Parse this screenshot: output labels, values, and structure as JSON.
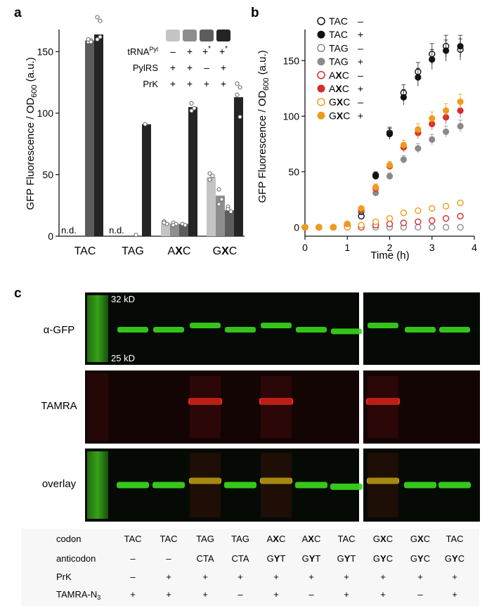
{
  "panels": {
    "a": "a",
    "b": "b",
    "c": "c"
  },
  "chart_data": [
    {
      "type": "bar",
      "panel": "a",
      "ylabel_main": "GFP Fluorescence / OD",
      "ylabel_sub": "600",
      "ylabel_tail": " (a.u.)",
      "yticks": [
        0,
        50,
        100,
        150
      ],
      "ylim": [
        0,
        168
      ],
      "groups": [
        {
          "pre": "TAC",
          "bold": "",
          "post": ""
        },
        {
          "pre": "TAG",
          "bold": "",
          "post": ""
        },
        {
          "pre": "A",
          "bold": "X",
          "post": "C"
        },
        {
          "pre": "G",
          "bold": "X",
          "post": "C"
        }
      ],
      "nd_label": "n.d.",
      "conditions": [
        {
          "color": "#c4c4c4",
          "trna": "–",
          "trna_star": "",
          "pylrs": "+",
          "prk": "+"
        },
        {
          "color": "#8e8e8e",
          "trna": "+",
          "trna_star": "",
          "pylrs": "+",
          "prk": "+"
        },
        {
          "color": "#5c5c5c",
          "trna": "+",
          "trna_star": "*",
          "pylrs": "–",
          "prk": "+"
        },
        {
          "color": "#242424",
          "trna": "+",
          "trna_star": "*",
          "pylrs": "+",
          "prk": "+"
        }
      ],
      "row_labels": {
        "trna": "tRNA",
        "trna_sup": "Pyl",
        "pylrs": "PylRS",
        "prk": "PrK"
      },
      "bars": [
        {
          "group": 0,
          "cond": 0,
          "value": null
        },
        {
          "group": 0,
          "cond": 2,
          "value": 159,
          "points": [
            158,
            159,
            160,
            158
          ]
        },
        {
          "group": 0,
          "cond": 3,
          "value": 164,
          "points": [
            178,
            175,
            160,
            162
          ]
        },
        {
          "group": 1,
          "cond": 0,
          "value": null
        },
        {
          "group": 1,
          "cond": 2,
          "value": 0.5,
          "points": [
            1
          ]
        },
        {
          "group": 1,
          "cond": 3,
          "value": 91,
          "points": [
            91
          ]
        },
        {
          "group": 2,
          "cond": 0,
          "value": 11,
          "points": [
            12,
            10,
            11
          ]
        },
        {
          "group": 2,
          "cond": 1,
          "value": 10,
          "points": [
            11,
            10,
            9
          ]
        },
        {
          "group": 2,
          "cond": 2,
          "value": 10,
          "points": [
            10,
            9
          ]
        },
        {
          "group": 2,
          "cond": 3,
          "value": 105,
          "points": [
            108,
            104,
            102
          ]
        },
        {
          "group": 3,
          "cond": 0,
          "value": 48,
          "points": [
            51,
            49,
            46
          ]
        },
        {
          "group": 3,
          "cond": 1,
          "value": 33,
          "points": [
            38,
            30,
            26
          ]
        },
        {
          "group": 3,
          "cond": 2,
          "value": 21,
          "points": [
            24,
            20,
            22
          ]
        },
        {
          "group": 3,
          "cond": 3,
          "value": 113,
          "points": [
            124,
            121,
            115,
            97
          ]
        }
      ]
    },
    {
      "type": "scatter",
      "panel": "b",
      "xlabel": "Time (h)",
      "ylabel_main": "GFP Fluorescence / OD",
      "ylabel_sub": "600",
      "ylabel_tail": " (a.u.)",
      "xlim": [
        0,
        4
      ],
      "ylim": [
        -8,
        178
      ],
      "xticks": [
        0,
        1,
        2,
        3,
        4
      ],
      "yticks": [
        0,
        50,
        100,
        150
      ],
      "x": [
        0,
        0.33,
        0.67,
        1.0,
        1.33,
        1.67,
        2.0,
        2.33,
        2.67,
        3.0,
        3.33,
        3.67
      ],
      "series": [
        {
          "label_pre": "TAC",
          "label_bold": "",
          "label_post": "",
          "sign": "–",
          "color": "#111111",
          "filled": false,
          "values": [
            0,
            0,
            0,
            2,
            10,
            47,
            85,
            121,
            140,
            156,
            163,
            160
          ]
        },
        {
          "label_pre": "TAC",
          "label_bold": "",
          "label_post": "",
          "sign": "+",
          "color": "#111111",
          "filled": true,
          "values": [
            0,
            0,
            0,
            2,
            14,
            46,
            84,
            117,
            135,
            151,
            159,
            163
          ]
        },
        {
          "label_pre": "TAG",
          "label_bold": "",
          "label_post": "",
          "sign": "–",
          "color": "#8a8a8a",
          "filled": false,
          "values": [
            0,
            0,
            0,
            0,
            0,
            0,
            0,
            0,
            0,
            0,
            0,
            0
          ]
        },
        {
          "label_pre": "TAG",
          "label_bold": "",
          "label_post": "",
          "sign": "+",
          "color": "#8a8a8a",
          "filled": true,
          "values": [
            0,
            0,
            0,
            2,
            15,
            31,
            46,
            61,
            71,
            79,
            86,
            91
          ]
        },
        {
          "label_pre": "A",
          "label_bold": "X",
          "label_post": "C",
          "sign": "–",
          "color": "#d62c2c",
          "filled": false,
          "values": [
            0,
            0,
            0,
            0,
            0,
            2,
            3,
            4,
            5,
            6,
            8,
            10
          ]
        },
        {
          "label_pre": "A",
          "label_bold": "X",
          "label_post": "C",
          "sign": "+",
          "color": "#d62c2c",
          "filled": true,
          "values": [
            0,
            0,
            0,
            3,
            16,
            35,
            55,
            72,
            85,
            93,
            99,
            105
          ]
        },
        {
          "label_pre": "G",
          "label_bold": "X",
          "label_post": "C",
          "sign": "–",
          "color": "#f09a1a",
          "filled": false,
          "values": [
            0,
            0,
            0,
            0,
            2,
            5,
            8,
            13,
            15,
            17,
            19,
            22
          ]
        },
        {
          "label_pre": "G",
          "label_bold": "X",
          "label_post": "C",
          "sign": "+",
          "color": "#f09a1a",
          "filled": true,
          "values": [
            0,
            0,
            0,
            3,
            17,
            36,
            56,
            74,
            88,
            98,
            105,
            113
          ]
        }
      ]
    }
  ],
  "gel": {
    "rows": [
      {
        "label": "α-GFP",
        "channel": "gfp"
      },
      {
        "label": "TAMRA",
        "channel": "tamra"
      },
      {
        "label": "overlay",
        "channel": "overlay"
      }
    ],
    "markers": {
      "top": "32 kD",
      "bottom": "25 kD"
    },
    "lane_bands": [
      {
        "gfp_shift": 0,
        "tamra": 0
      },
      {
        "gfp_shift": 0,
        "tamra": 0
      },
      {
        "gfp_shift": -1,
        "tamra": 1
      },
      {
        "gfp_shift": 0,
        "tamra": 0
      },
      {
        "gfp_shift": -1,
        "tamra": 1
      },
      {
        "gfp_shift": 0,
        "tamra": 0
      },
      {
        "gfp_shift": 0.4,
        "tamra": 0
      },
      {
        "gfp_shift": -1,
        "tamra": 1
      },
      {
        "gfp_shift": 0,
        "tamra": 0
      },
      {
        "gfp_shift": 0,
        "tamra": 0
      }
    ],
    "table": {
      "row_labels": [
        {
          "main": "codon",
          "sub": ""
        },
        {
          "main": "anticodon",
          "sub": ""
        },
        {
          "main": "PrK",
          "sub": ""
        },
        {
          "main": "TAMRA-N",
          "sub": "3"
        }
      ],
      "codon": [
        [
          "TAC",
          "",
          ""
        ],
        [
          "TAC",
          "",
          ""
        ],
        [
          "TAG",
          "",
          ""
        ],
        [
          "TAG",
          "",
          ""
        ],
        [
          "A",
          "X",
          "C"
        ],
        [
          "A",
          "X",
          "C"
        ],
        [
          "TAC",
          "",
          ""
        ],
        [
          "G",
          "X",
          "C"
        ],
        [
          "G",
          "X",
          "C"
        ],
        [
          "TAC",
          "",
          ""
        ]
      ],
      "anticodon": [
        [
          "–",
          "",
          ""
        ],
        [
          "–",
          "",
          ""
        ],
        [
          "CTA",
          "",
          ""
        ],
        [
          "CTA",
          "",
          ""
        ],
        [
          "G",
          "Y",
          "T"
        ],
        [
          "G",
          "Y",
          "T"
        ],
        [
          "G",
          "Y",
          "T"
        ],
        [
          "G",
          "Y",
          "C"
        ],
        [
          "G",
          "Y",
          "C"
        ],
        [
          "G",
          "Y",
          "C"
        ]
      ],
      "prk": [
        "–",
        "+",
        "+",
        "+",
        "+",
        "+",
        "+",
        "+",
        "+",
        "+"
      ],
      "tamra_n3": [
        "+",
        "+",
        "+",
        "–",
        "+",
        "–",
        "+",
        "+",
        "–",
        "+"
      ]
    }
  }
}
